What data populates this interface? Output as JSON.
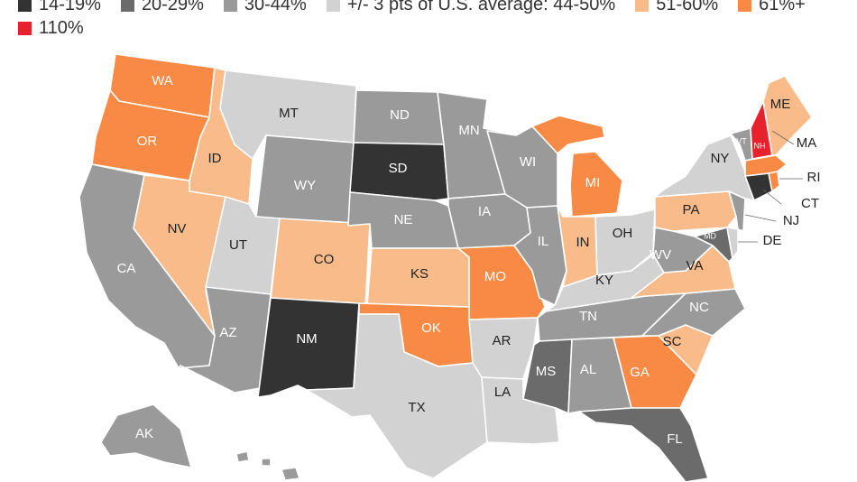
{
  "legend": [
    {
      "label": "14-19%",
      "color": "#333333"
    },
    {
      "label": "20-29%",
      "color": "#6b6b6b"
    },
    {
      "label": "30-44%",
      "color": "#9a9a9a"
    },
    {
      "label": "+/- 3 pts of U.S. average: 44-50%",
      "color": "#d2d2d2"
    },
    {
      "label": "51-60%",
      "color": "#f9bb8a"
    },
    {
      "label": "61%+",
      "color": "#f88a45"
    },
    {
      "label": "110%",
      "color": "#e8222d"
    }
  ],
  "states": {
    "WA": {
      "label": "WA",
      "cat": 5
    },
    "OR": {
      "label": "OR",
      "cat": 5
    },
    "CA": {
      "label": "CA",
      "cat": 2
    },
    "ID": {
      "label": "ID",
      "cat": 4
    },
    "NV": {
      "label": "NV",
      "cat": 4
    },
    "MT": {
      "label": "MT",
      "cat": 3
    },
    "WY": {
      "label": "WY",
      "cat": 2
    },
    "UT": {
      "label": "UT",
      "cat": 3
    },
    "AZ": {
      "label": "AZ",
      "cat": 2
    },
    "CO": {
      "label": "CO",
      "cat": 4
    },
    "NM": {
      "label": "NM",
      "cat": 0
    },
    "ND": {
      "label": "ND",
      "cat": 2
    },
    "SD": {
      "label": "SD",
      "cat": 0
    },
    "NE": {
      "label": "NE",
      "cat": 2
    },
    "KS": {
      "label": "KS",
      "cat": 4
    },
    "OK": {
      "label": "OK",
      "cat": 5
    },
    "TX": {
      "label": "TX",
      "cat": 3
    },
    "MN": {
      "label": "MN",
      "cat": 2
    },
    "IA": {
      "label": "IA",
      "cat": 2
    },
    "MO": {
      "label": "MO",
      "cat": 5
    },
    "AR": {
      "label": "AR",
      "cat": 3
    },
    "LA": {
      "label": "LA",
      "cat": 3
    },
    "WI": {
      "label": "WI",
      "cat": 2
    },
    "IL": {
      "label": "IL",
      "cat": 2
    },
    "MI": {
      "label": "MI",
      "cat": 5
    },
    "IN": {
      "label": "IN",
      "cat": 4
    },
    "OH": {
      "label": "OH",
      "cat": 3
    },
    "KY": {
      "label": "KY",
      "cat": 3
    },
    "TN": {
      "label": "TN",
      "cat": 2
    },
    "MS": {
      "label": "MS",
      "cat": 1
    },
    "AL": {
      "label": "AL",
      "cat": 2
    },
    "GA": {
      "label": "GA",
      "cat": 5
    },
    "FL": {
      "label": "FL",
      "cat": 1
    },
    "SC": {
      "label": "SC",
      "cat": 4
    },
    "NC": {
      "label": "NC",
      "cat": 2
    },
    "VA": {
      "label": "VA",
      "cat": 4
    },
    "WV": {
      "label": "WV",
      "cat": 2
    },
    "MD": {
      "label": "MD",
      "cat": 1
    },
    "DE": {
      "label": "DE",
      "cat": 3
    },
    "PA": {
      "label": "PA",
      "cat": 4
    },
    "NJ": {
      "label": "NJ",
      "cat": 2
    },
    "NY": {
      "label": "NY",
      "cat": 3
    },
    "CT": {
      "label": "CT",
      "cat": 0
    },
    "RI": {
      "label": "RI",
      "cat": 5
    },
    "MA": {
      "label": "MA",
      "cat": 5
    },
    "VT": {
      "label": "VT",
      "cat": 2
    },
    "NH": {
      "label": "NH",
      "cat": 6
    },
    "ME": {
      "label": "ME",
      "cat": 4
    },
    "AK": {
      "label": "AK",
      "cat": 2
    },
    "HI": {
      "label": "",
      "cat": 2
    }
  }
}
